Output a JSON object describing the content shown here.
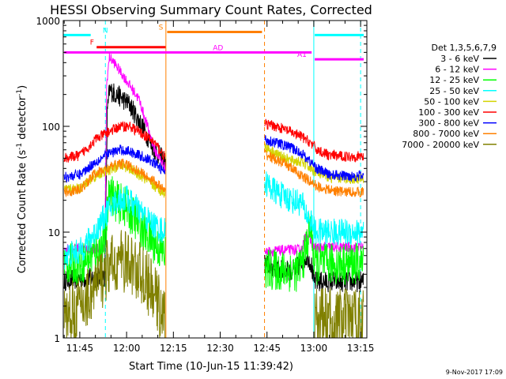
{
  "chart_data": {
    "type": "line",
    "title": "HESSI Observing Summary Count Rates, Corrected",
    "xlabel": "Start Time (10-Jun-15 11:39:42)",
    "ylabel_parts": {
      "main": "Corrected Count Rate (s",
      "sup1": "-1",
      "mid": " detector",
      "sup2": "-1",
      "end": ")"
    },
    "footer_date": "9-Nov-2017 17:09",
    "x_axis": {
      "start_min": 699.7,
      "end_min": 797.0,
      "minor_step_min": 5,
      "ticks": [
        {
          "t": 705,
          "label": "11:45"
        },
        {
          "t": 720,
          "label": "12:00"
        },
        {
          "t": 735,
          "label": "12:15"
        },
        {
          "t": 750,
          "label": "12:30"
        },
        {
          "t": 765,
          "label": "12:45"
        },
        {
          "t": 780,
          "label": "13:00"
        },
        {
          "t": 795,
          "label": "13:15"
        }
      ]
    },
    "y_axis": {
      "scale": "log",
      "min": 1,
      "max": 1000,
      "ticks": [
        {
          "v": 1,
          "label": "1"
        },
        {
          "v": 10,
          "label": "10"
        },
        {
          "v": 100,
          "label": "100"
        },
        {
          "v": 1000,
          "label": "1000"
        }
      ]
    },
    "legend": {
      "header": "Det 1,3,5,6,7,9",
      "entries": [
        {
          "label": "3 - 6 keV",
          "color": "#000000"
        },
        {
          "label": "6 - 12 keV",
          "color": "#ff00ff"
        },
        {
          "label": "12 - 25 keV",
          "color": "#00ff00"
        },
        {
          "label": "25 - 50 keV",
          "color": "#00ffff"
        },
        {
          "label": "50 - 100 keV",
          "color": "#d4d400"
        },
        {
          "label": "100 - 300 keV",
          "color": "#ff0000"
        },
        {
          "label": "300 - 800 keV",
          "color": "#0000ff"
        },
        {
          "label": "800 - 7000 keV",
          "color": "#ff8000"
        },
        {
          "label": "7000 - 20000 keV",
          "color": "#808000"
        }
      ]
    },
    "flags": [
      {
        "label": "N",
        "color": "#00ffff",
        "level": 730,
        "label_t": 713.2,
        "segments": [
          [
            699.7,
            708.5
          ],
          [
            780.3,
            796.0
          ]
        ]
      },
      {
        "label": "F",
        "color": "#ff0000",
        "level": 560,
        "label_t": 708.9,
        "segments": [
          [
            710.4,
            732.5
          ]
        ]
      },
      {
        "label": "S",
        "color": "#ff8000",
        "level": 780,
        "label_t": 731.0,
        "segments": [
          [
            733.0,
            763.4
          ]
        ]
      },
      {
        "label": "AD",
        "color": "#ff00ff",
        "level": 500,
        "label_t": 749.3,
        "segments": [
          [
            700.0,
            779.3
          ]
        ]
      },
      {
        "label": "A1",
        "color": "#ff00ff",
        "level": 430,
        "label_t": 776.2,
        "segments": [
          [
            780.3,
            796.0
          ]
        ]
      }
    ],
    "event_lines": [
      {
        "t": 713.2,
        "color": "#00ffff",
        "dashed": true
      },
      {
        "t": 732.6,
        "color": "#ff8000",
        "dashed": false
      },
      {
        "t": 764.2,
        "color": "#ff8000",
        "dashed": true
      },
      {
        "t": 780.0,
        "color": "#00ffff",
        "dashed": false
      },
      {
        "t": 795.0,
        "color": "#00ffff",
        "dashed": true
      }
    ],
    "gap": {
      "start": 732.6,
      "end": 764.2
    },
    "series": [
      {
        "band": "3 - 6 keV",
        "color": "#000000",
        "noise": 0.1,
        "points": [
          [
            700,
            3.5
          ],
          [
            713,
            3.8
          ],
          [
            713.8,
            130
          ],
          [
            714.5,
            220
          ],
          [
            718,
            190
          ],
          [
            721,
            160
          ],
          [
            725,
            100
          ],
          [
            729,
            60
          ],
          [
            732.5,
            45
          ],
          [
            764.3,
            5
          ],
          [
            770,
            4.3
          ],
          [
            774,
            4.4
          ],
          [
            778,
            6
          ],
          [
            779.2,
            5
          ],
          [
            780,
            3.4
          ],
          [
            796,
            3.4
          ]
        ]
      },
      {
        "band": "6 - 12 keV",
        "color": "#ff00ff",
        "noise": 0.05,
        "points": [
          [
            700,
            7
          ],
          [
            713,
            7
          ],
          [
            713.6,
            250
          ],
          [
            714.5,
            450
          ],
          [
            716,
            400
          ],
          [
            720,
            270
          ],
          [
            724,
            180
          ],
          [
            729,
            60
          ],
          [
            732.5,
            40
          ],
          [
            764.3,
            6.5
          ],
          [
            772,
            6.8
          ],
          [
            776,
            6.8
          ],
          [
            777.8,
            10
          ],
          [
            779.2,
            8
          ],
          [
            780,
            7.2
          ],
          [
            796,
            7.2
          ]
        ]
      },
      {
        "band": "12 - 25 keV",
        "color": "#00ff00",
        "noise": 0.2,
        "points": [
          [
            700,
            5
          ],
          [
            705,
            5
          ],
          [
            712,
            7
          ],
          [
            713.5,
            10
          ],
          [
            714.4,
            28
          ],
          [
            716,
            20
          ],
          [
            719,
            18
          ],
          [
            723,
            13
          ],
          [
            727,
            9
          ],
          [
            732.5,
            6
          ],
          [
            764.3,
            4.5
          ],
          [
            770,
            4.3
          ],
          [
            775,
            4.3
          ],
          [
            777,
            6
          ],
          [
            779,
            12
          ],
          [
            779.8,
            7
          ],
          [
            780.2,
            5
          ],
          [
            796,
            5
          ]
        ]
      },
      {
        "band": "25 - 50 keV",
        "color": "#00ffff",
        "noise": 0.13,
        "points": [
          [
            700,
            6
          ],
          [
            705,
            6.5
          ],
          [
            710,
            10
          ],
          [
            714,
            16
          ],
          [
            717,
            20
          ],
          [
            720,
            21
          ],
          [
            724,
            16
          ],
          [
            728,
            12
          ],
          [
            732.5,
            10
          ],
          [
            764.3,
            30
          ],
          [
            767,
            25
          ],
          [
            770,
            22
          ],
          [
            773,
            20
          ],
          [
            776,
            19
          ],
          [
            778,
            14
          ],
          [
            779.6,
            12
          ],
          [
            780.3,
            10
          ],
          [
            785,
            10
          ],
          [
            796,
            10
          ]
        ]
      },
      {
        "band": "50 - 100 keV",
        "color": "#d4d400",
        "noise": 0.05,
        "points": [
          [
            700,
            25
          ],
          [
            705,
            26
          ],
          [
            710,
            34
          ],
          [
            714,
            38
          ],
          [
            718,
            43
          ],
          [
            721,
            40
          ],
          [
            725,
            33
          ],
          [
            729,
            27
          ],
          [
            732.5,
            23
          ],
          [
            764.3,
            65
          ],
          [
            768,
            55
          ],
          [
            772,
            48
          ],
          [
            776,
            46
          ],
          [
            779,
            40
          ],
          [
            781,
            36
          ],
          [
            785,
            33
          ],
          [
            790,
            32
          ],
          [
            796,
            32
          ]
        ]
      },
      {
        "band": "100 - 300 keV",
        "color": "#ff0000",
        "noise": 0.05,
        "points": [
          [
            700,
            50
          ],
          [
            705,
            53
          ],
          [
            710,
            75
          ],
          [
            714,
            88
          ],
          [
            718,
            100
          ],
          [
            721,
            100
          ],
          [
            725,
            85
          ],
          [
            729,
            70
          ],
          [
            732.5,
            50
          ],
          [
            764.3,
            105
          ],
          [
            768,
            100
          ],
          [
            772,
            90
          ],
          [
            776,
            80
          ],
          [
            779,
            70
          ],
          [
            781,
            60
          ],
          [
            785,
            53
          ],
          [
            790,
            52
          ],
          [
            796,
            52
          ]
        ]
      },
      {
        "band": "300 - 800 keV",
        "color": "#0000ff",
        "noise": 0.05,
        "points": [
          [
            700,
            33
          ],
          [
            705,
            35
          ],
          [
            710,
            46
          ],
          [
            714,
            55
          ],
          [
            718,
            60
          ],
          [
            721,
            58
          ],
          [
            725,
            52
          ],
          [
            729,
            45
          ],
          [
            732.5,
            36
          ],
          [
            764.3,
            75
          ],
          [
            768,
            70
          ],
          [
            772,
            64
          ],
          [
            776,
            56
          ],
          [
            779,
            46
          ],
          [
            781,
            40
          ],
          [
            785,
            35
          ],
          [
            790,
            34
          ],
          [
            796,
            34
          ]
        ]
      },
      {
        "band": "800 - 7000 keV",
        "color": "#ff8000",
        "noise": 0.05,
        "points": [
          [
            700,
            24
          ],
          [
            705,
            25
          ],
          [
            710,
            36
          ],
          [
            714,
            40
          ],
          [
            718,
            45
          ],
          [
            721,
            42
          ],
          [
            725,
            36
          ],
          [
            729,
            30
          ],
          [
            732.5,
            24
          ],
          [
            764.3,
            55
          ],
          [
            768,
            48
          ],
          [
            772,
            42
          ],
          [
            776,
            34
          ],
          [
            779,
            30
          ],
          [
            781,
            27
          ],
          [
            785,
            25
          ],
          [
            790,
            24
          ],
          [
            796,
            24
          ]
        ]
      },
      {
        "band": "7000 - 20000 keV",
        "color": "#808000",
        "noise": 0.3,
        "points": [
          [
            700,
            1.5
          ],
          [
            705,
            2
          ],
          [
            710,
            3
          ],
          [
            714,
            4.5
          ],
          [
            718,
            5.5
          ],
          [
            721,
            5
          ],
          [
            725,
            4
          ],
          [
            729,
            2.5
          ],
          [
            732.5,
            1.5
          ],
          [
            780.3,
            1.5
          ],
          [
            796,
            1.5
          ]
        ]
      }
    ]
  }
}
